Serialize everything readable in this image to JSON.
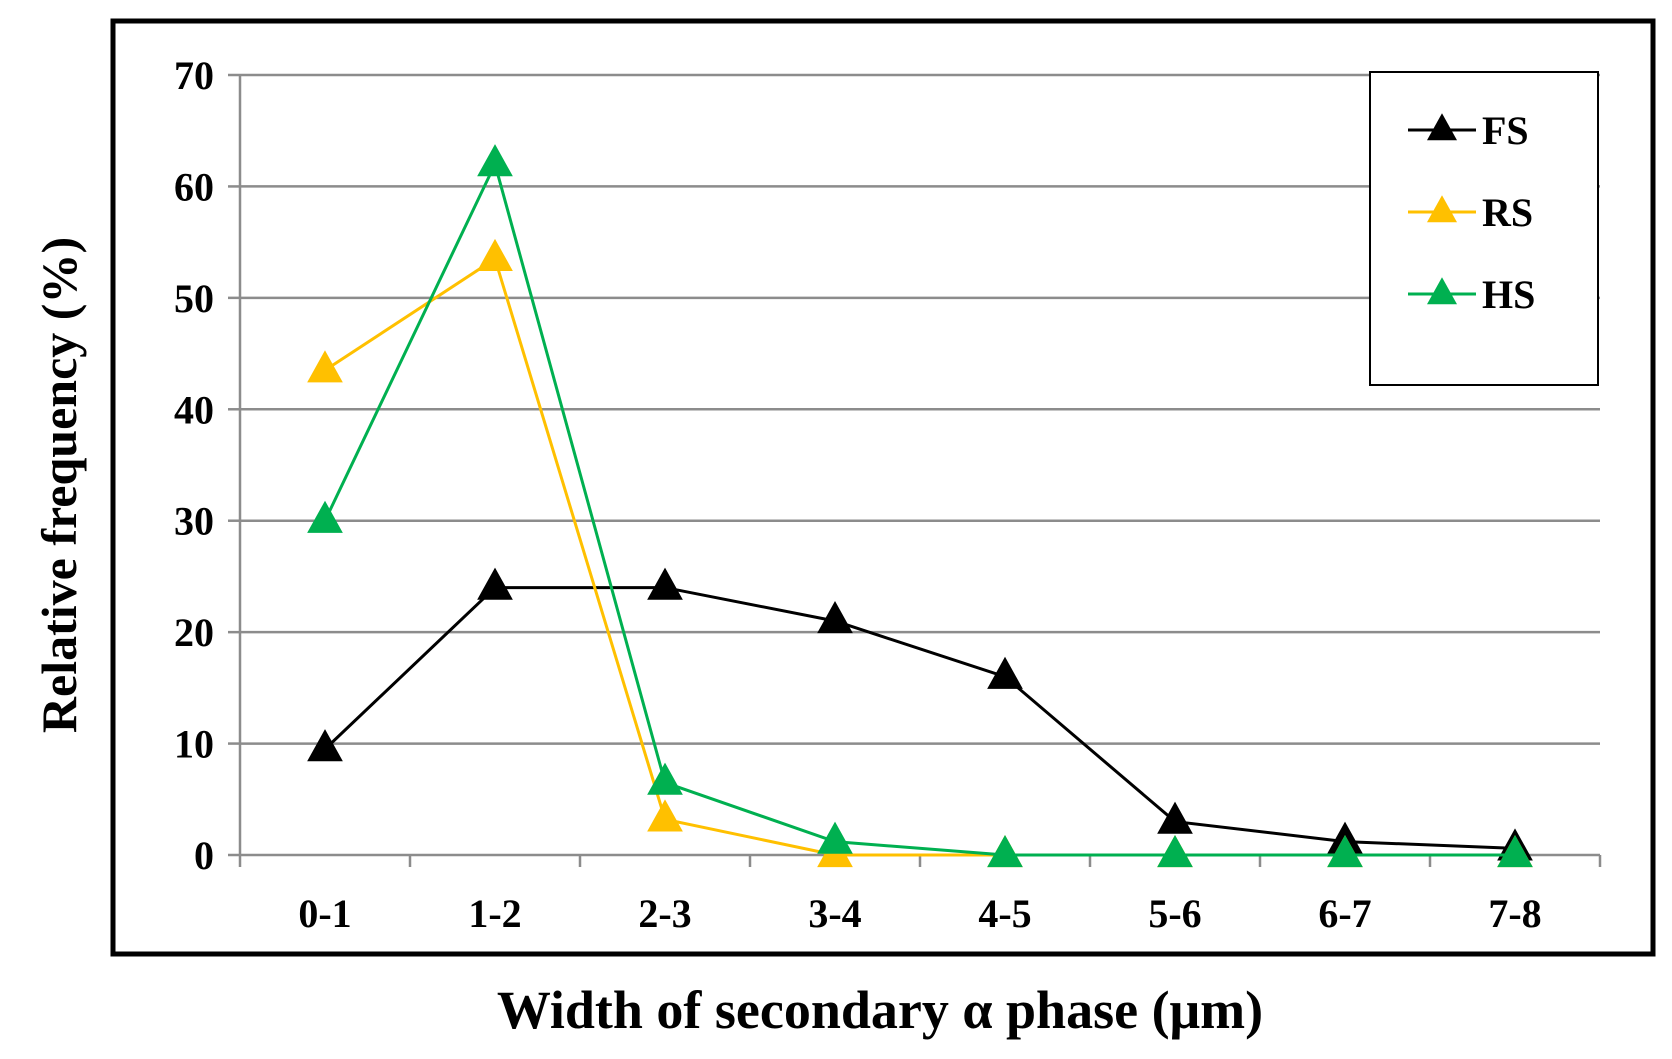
{
  "chart_data": {
    "type": "line",
    "xlabel": "Width of secondary α phase (μm)",
    "ylabel": "Relative frequency (%)",
    "categories": [
      "0-1",
      "1-2",
      "2-3",
      "3-4",
      "4-5",
      "5-6",
      "6-7",
      "7-8"
    ],
    "ylim": [
      0,
      70
    ],
    "yticks": [
      0,
      10,
      20,
      30,
      40,
      50,
      60,
      70
    ],
    "grid": true,
    "legend_position": "top-right",
    "series": [
      {
        "name": "FS",
        "color": "#000000",
        "values": [
          9.5,
          24,
          24,
          21,
          16,
          3,
          1.2,
          0.6
        ]
      },
      {
        "name": "RS",
        "color": "#FFC000",
        "values": [
          43.5,
          53.5,
          3.2,
          0,
          0,
          0,
          0,
          0
        ]
      },
      {
        "name": "HS",
        "color": "#00B050",
        "values": [
          30,
          62,
          6.5,
          1.2,
          0,
          0,
          0,
          0
        ]
      }
    ]
  }
}
